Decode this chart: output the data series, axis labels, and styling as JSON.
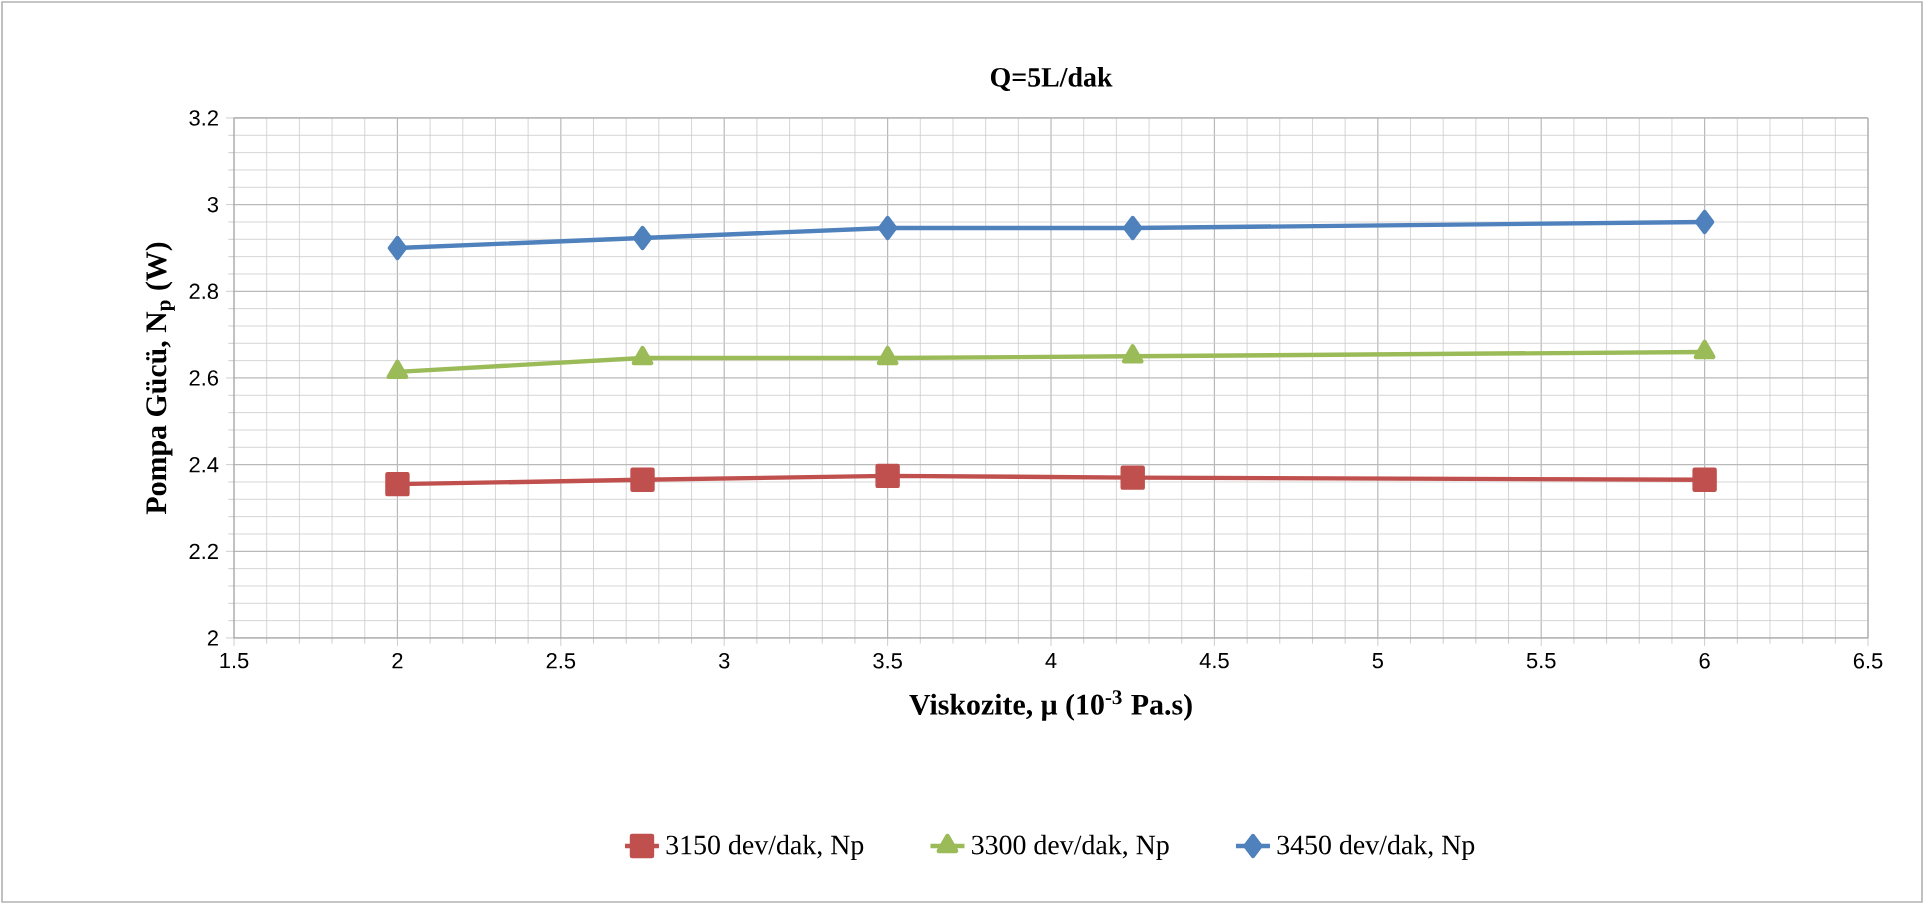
{
  "chart_data": {
    "type": "line",
    "title": "Q=5L/dak",
    "xlabel": "Viskozite, μ (10$^{-3}$ Pa.s)",
    "ylabel": "Pompa Gücü, N$_{p}$ (W)",
    "xlim": [
      1.5,
      6.5
    ],
    "xticks": [
      1.5,
      2,
      2.5,
      3,
      3.5,
      4,
      4.5,
      5,
      5.5,
      6,
      6.5
    ],
    "ylim": [
      2,
      3.2
    ],
    "yticks": [
      2,
      2.2,
      2.4,
      2.6,
      2.8,
      3,
      3.2
    ],
    "grid": true,
    "legend": "bottom",
    "series": [
      {
        "name": "3150 dev/dak, Np",
        "color": "#c0504d",
        "marker": "square",
        "x": [
          2,
          2.75,
          3.5,
          4.25,
          6
        ],
        "values": [
          2.355,
          2.365,
          2.374,
          2.37,
          2.365
        ]
      },
      {
        "name": "3300 dev/dak, Np",
        "color": "#9bbb59",
        "marker": "triangle",
        "x": [
          2,
          2.75,
          3.5,
          4.25,
          6
        ],
        "values": [
          2.614,
          2.646,
          2.646,
          2.65,
          2.66
        ]
      },
      {
        "name": "3450 dev/dak, Np",
        "color": "#4f81bd",
        "marker": "diamond",
        "x": [
          2,
          2.75,
          3.5,
          4.25,
          6
        ],
        "values": [
          2.9,
          2.923,
          2.946,
          2.946,
          2.96
        ]
      }
    ]
  }
}
